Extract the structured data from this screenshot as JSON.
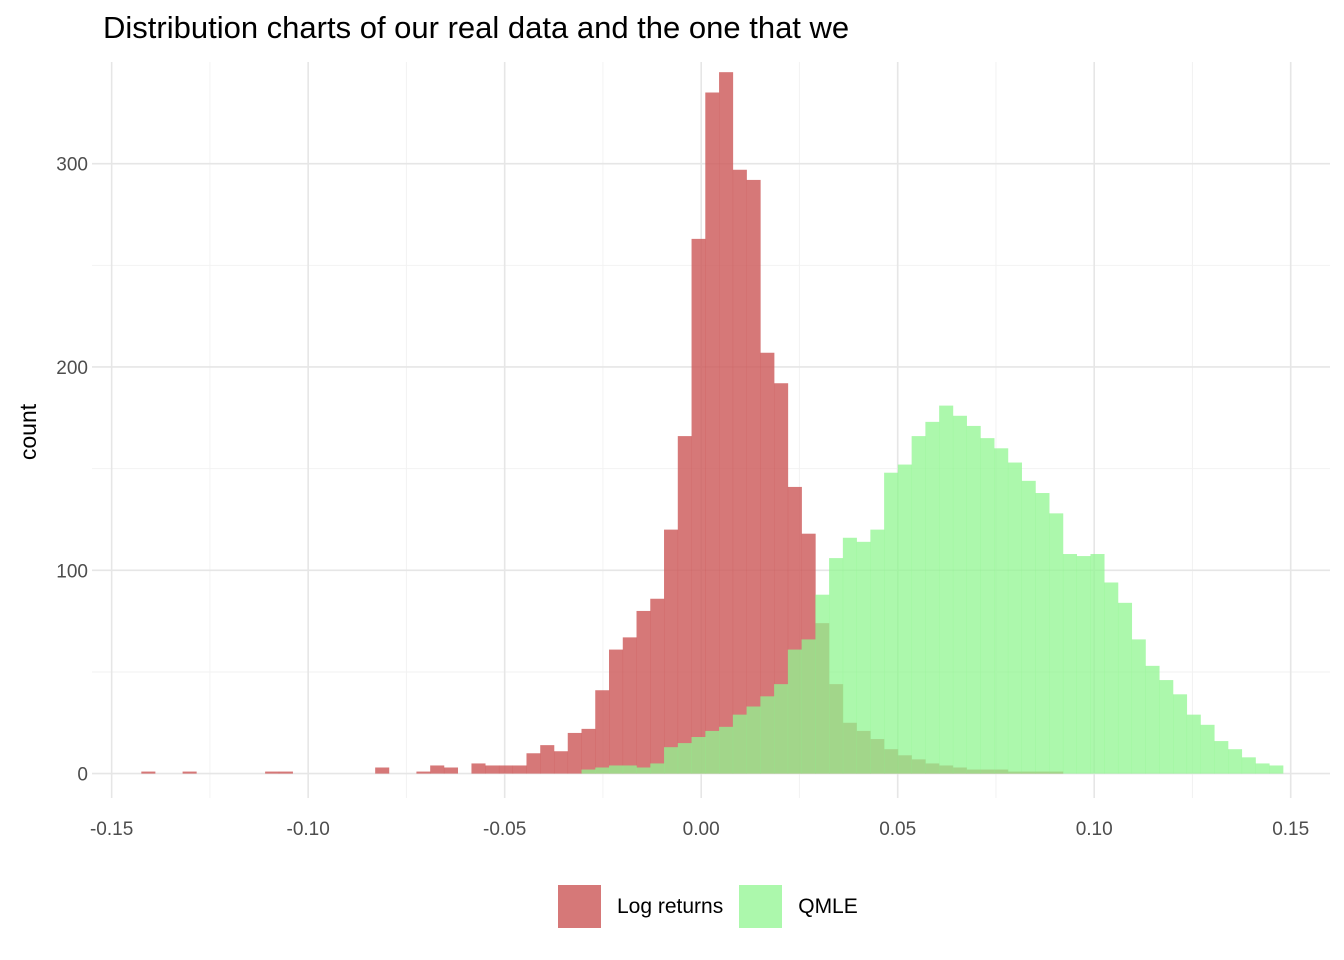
{
  "title": "Distribution charts of our real data and the one that we",
  "chart_data": {
    "type": "bar",
    "title": "Distribution charts of our real data and the one that we",
    "xlabel": "",
    "ylabel": "count",
    "xlim": [
      -0.155,
      0.16
    ],
    "ylim": [
      -12,
      350
    ],
    "x_ticks": [
      -0.15,
      -0.1,
      -0.05,
      0.0,
      0.05,
      0.1,
      0.15
    ],
    "x_tick_labels": [
      "-0.15",
      "-0.10",
      "-0.05",
      "0.00",
      "0.05",
      "0.10",
      "0.15"
    ],
    "y_ticks": [
      0,
      100,
      200,
      300
    ],
    "y_tick_labels": [
      "0",
      "100",
      "200",
      "300"
    ],
    "grid": true,
    "legend_position": "bottom",
    "bin_width": 0.0035,
    "series": [
      {
        "name": "Log returns",
        "color": "#cd5a5a",
        "opacity": 0.82,
        "bins": [
          [
            -0.1407,
            1
          ],
          [
            -0.1302,
            1
          ],
          [
            -0.1092,
            1
          ],
          [
            -0.1057,
            1
          ],
          [
            -0.0812,
            3
          ],
          [
            -0.0707,
            1
          ],
          [
            -0.0672,
            4
          ],
          [
            -0.0637,
            3
          ],
          [
            -0.0567,
            5
          ],
          [
            -0.0532,
            4
          ],
          [
            -0.0497,
            4
          ],
          [
            -0.0462,
            4
          ],
          [
            -0.0427,
            10
          ],
          [
            -0.0392,
            14
          ],
          [
            -0.0357,
            11
          ],
          [
            -0.0322,
            20
          ],
          [
            -0.0287,
            22
          ],
          [
            -0.0252,
            41
          ],
          [
            -0.0217,
            61
          ],
          [
            -0.0182,
            67
          ],
          [
            -0.0147,
            80
          ],
          [
            -0.0112,
            86
          ],
          [
            -0.0077,
            120
          ],
          [
            -0.0042,
            166
          ],
          [
            -0.0007,
            263
          ],
          [
            0.0028,
            335
          ],
          [
            0.0063,
            345
          ],
          [
            0.0098,
            297
          ],
          [
            0.0133,
            292
          ],
          [
            0.0168,
            207
          ],
          [
            0.0203,
            192
          ],
          [
            0.0238,
            141
          ],
          [
            0.0273,
            118
          ],
          [
            0.0308,
            74
          ],
          [
            0.0343,
            44
          ],
          [
            0.0378,
            25
          ],
          [
            0.0413,
            21
          ],
          [
            0.0448,
            17
          ],
          [
            0.0483,
            12
          ],
          [
            0.0518,
            9
          ],
          [
            0.0553,
            7
          ],
          [
            0.0588,
            5
          ],
          [
            0.0623,
            4
          ],
          [
            0.0658,
            3
          ],
          [
            0.0693,
            2
          ],
          [
            0.0728,
            2
          ],
          [
            0.0763,
            2
          ],
          [
            0.0798,
            1
          ],
          [
            0.0833,
            1
          ],
          [
            0.0868,
            1
          ],
          [
            0.0903,
            1
          ]
        ]
      },
      {
        "name": "QMLE",
        "color": "#90f590",
        "opacity": 0.75,
        "bins": [
          [
            -0.0287,
            2
          ],
          [
            -0.0252,
            3
          ],
          [
            -0.0217,
            4
          ],
          [
            -0.0182,
            4
          ],
          [
            -0.0147,
            3
          ],
          [
            -0.0112,
            5
          ],
          [
            -0.0077,
            13
          ],
          [
            -0.0042,
            15
          ],
          [
            -0.0007,
            18
          ],
          [
            0.0028,
            21
          ],
          [
            0.0063,
            23
          ],
          [
            0.0098,
            29
          ],
          [
            0.0133,
            33
          ],
          [
            0.0168,
            38
          ],
          [
            0.0203,
            44
          ],
          [
            0.0238,
            61
          ],
          [
            0.0273,
            66
          ],
          [
            0.0308,
            88
          ],
          [
            0.0343,
            106
          ],
          [
            0.0378,
            116
          ],
          [
            0.0413,
            114
          ],
          [
            0.0448,
            120
          ],
          [
            0.0483,
            148
          ],
          [
            0.0518,
            152
          ],
          [
            0.0553,
            166
          ],
          [
            0.0588,
            173
          ],
          [
            0.0623,
            181
          ],
          [
            0.0658,
            176
          ],
          [
            0.0693,
            171
          ],
          [
            0.0728,
            165
          ],
          [
            0.0763,
            160
          ],
          [
            0.0798,
            153
          ],
          [
            0.0833,
            144
          ],
          [
            0.0868,
            138
          ],
          [
            0.0903,
            128
          ],
          [
            0.0938,
            108
          ],
          [
            0.0973,
            107
          ],
          [
            0.1008,
            108
          ],
          [
            0.1043,
            94
          ],
          [
            0.1078,
            84
          ],
          [
            0.1113,
            66
          ],
          [
            0.1148,
            53
          ],
          [
            0.1183,
            46
          ],
          [
            0.1218,
            39
          ],
          [
            0.1253,
            29
          ],
          [
            0.1288,
            24
          ],
          [
            0.1323,
            16
          ],
          [
            0.1358,
            12
          ],
          [
            0.1393,
            8
          ],
          [
            0.1428,
            5
          ],
          [
            0.1463,
            4
          ]
        ]
      }
    ]
  }
}
